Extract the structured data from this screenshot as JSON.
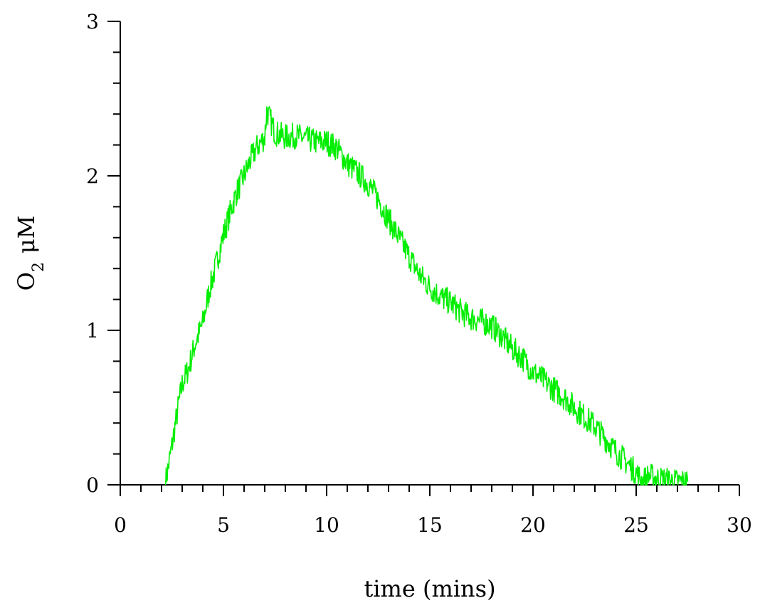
{
  "chart_data": {
    "type": "line",
    "title": "",
    "xlabel": "time (mins)",
    "ylabel_main": "O",
    "ylabel_sub": "2",
    "ylabel_unit": "μM",
    "xlim": [
      0,
      30
    ],
    "ylim": [
      0,
      3
    ],
    "x_major_ticks": [
      0,
      5,
      10,
      15,
      20,
      25,
      30
    ],
    "x_minor_step": 1,
    "y_major_ticks": [
      0,
      1,
      2,
      3
    ],
    "y_minor_step": 0.2,
    "x_tick_labels": [
      "0",
      "5",
      "10",
      "15",
      "20",
      "25",
      "30"
    ],
    "y_tick_labels": [
      "0",
      "1",
      "2",
      "3"
    ],
    "grid": false,
    "legend": "none",
    "line_color": "#00ee00",
    "series": [
      {
        "x": [
          2.2,
          2.5,
          2.8,
          3.0,
          3.3,
          3.6,
          4.0,
          4.3,
          4.6,
          5.0,
          5.3,
          5.6,
          6.0,
          6.3,
          6.6,
          7.0,
          7.1,
          7.5,
          8.0,
          8.5,
          9.0,
          9.5,
          10.0,
          10.5,
          11.0,
          11.5,
          12.0,
          12.5,
          13.0,
          13.5,
          14.0,
          14.5,
          15.0,
          15.5,
          16.0,
          16.5,
          17.0,
          17.5,
          18.0,
          18.5,
          19.0,
          19.5,
          20.0,
          20.5,
          21.0,
          21.5,
          22.0,
          22.5,
          23.0,
          23.5,
          24.0,
          24.5,
          25.0,
          25.3,
          25.6,
          26.0,
          26.5,
          27.0,
          27.5
        ],
        "y": [
          0.02,
          0.25,
          0.5,
          0.65,
          0.75,
          0.9,
          1.05,
          1.25,
          1.4,
          1.62,
          1.75,
          1.88,
          2.0,
          2.1,
          2.18,
          2.25,
          2.42,
          2.28,
          2.25,
          2.26,
          2.24,
          2.22,
          2.22,
          2.18,
          2.08,
          2.02,
          1.95,
          1.85,
          1.72,
          1.6,
          1.48,
          1.36,
          1.28,
          1.22,
          1.18,
          1.12,
          1.08,
          1.06,
          1.03,
          0.96,
          0.88,
          0.82,
          0.73,
          0.68,
          0.62,
          0.57,
          0.5,
          0.44,
          0.38,
          0.3,
          0.22,
          0.15,
          0.08,
          0.02,
          0.06,
          0.04,
          0.03,
          0.02,
          0.02
        ]
      }
    ]
  }
}
